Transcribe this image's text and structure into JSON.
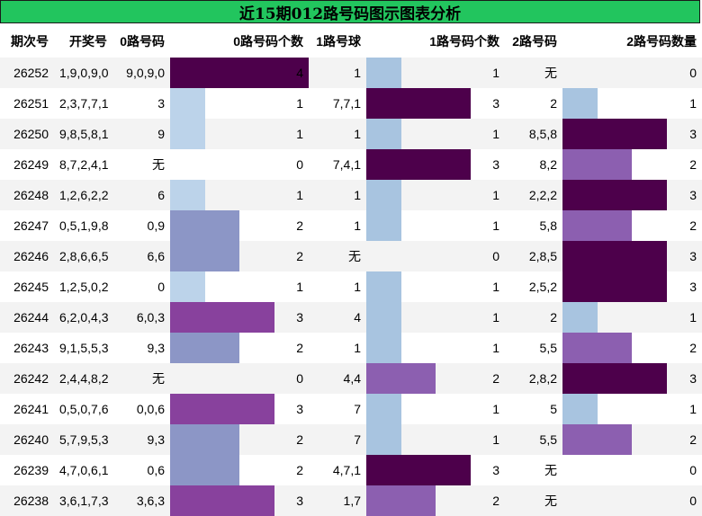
{
  "title": "近15期012路号码图示图表分析",
  "headers": [
    "期次号",
    "开奖号",
    "0路号码",
    "0路号码个数",
    "1路号球",
    "1路号码个数",
    "2路号码",
    "2路号码数量"
  ],
  "max_count": 4,
  "colors": {
    "1": "#bcd3ea",
    "2": "#8c96c6",
    "3": "#88419d",
    "4": "#4d004b"
  },
  "colors_c1": {
    "1": "#a8c4e0",
    "2": "#8c5fb0",
    "3": "#4d004b"
  },
  "colors_c2": {
    "1": "#a8c4e0",
    "2": "#8c5fb0",
    "3": "#4d004b"
  },
  "rows": [
    {
      "period": "26252",
      "draw": "1,9,0,9,0",
      "r0": "9,0,9,0",
      "c0": 4,
      "r1": "1",
      "c1": 1,
      "r2": "无",
      "c2": 0
    },
    {
      "period": "26251",
      "draw": "2,3,7,7,1",
      "r0": "3",
      "c0": 1,
      "r1": "7,7,1",
      "c1": 3,
      "r2": "2",
      "c2": 1
    },
    {
      "period": "26250",
      "draw": "9,8,5,8,1",
      "r0": "9",
      "c0": 1,
      "r1": "1",
      "c1": 1,
      "r2": "8,5,8",
      "c2": 3
    },
    {
      "period": "26249",
      "draw": "8,7,2,4,1",
      "r0": "无",
      "c0": 0,
      "r1": "7,4,1",
      "c1": 3,
      "r2": "8,2",
      "c2": 2
    },
    {
      "period": "26248",
      "draw": "1,2,6,2,2",
      "r0": "6",
      "c0": 1,
      "r1": "1",
      "c1": 1,
      "r2": "2,2,2",
      "c2": 3
    },
    {
      "period": "26247",
      "draw": "0,5,1,9,8",
      "r0": "0,9",
      "c0": 2,
      "r1": "1",
      "c1": 1,
      "r2": "5,8",
      "c2": 2
    },
    {
      "period": "26246",
      "draw": "2,8,6,6,5",
      "r0": "6,6",
      "c0": 2,
      "r1": "无",
      "c1": 0,
      "r2": "2,8,5",
      "c2": 3
    },
    {
      "period": "26245",
      "draw": "1,2,5,0,2",
      "r0": "0",
      "c0": 1,
      "r1": "1",
      "c1": 1,
      "r2": "2,5,2",
      "c2": 3
    },
    {
      "period": "26244",
      "draw": "6,2,0,4,3",
      "r0": "6,0,3",
      "c0": 3,
      "r1": "4",
      "c1": 1,
      "r2": "2",
      "c2": 1
    },
    {
      "period": "26243",
      "draw": "9,1,5,5,3",
      "r0": "9,3",
      "c0": 2,
      "r1": "1",
      "c1": 1,
      "r2": "5,5",
      "c2": 2
    },
    {
      "period": "26242",
      "draw": "2,4,4,8,2",
      "r0": "无",
      "c0": 0,
      "r1": "4,4",
      "c1": 2,
      "r2": "2,8,2",
      "c2": 3
    },
    {
      "period": "26241",
      "draw": "0,5,0,7,6",
      "r0": "0,0,6",
      "c0": 3,
      "r1": "7",
      "c1": 1,
      "r2": "5",
      "c2": 1
    },
    {
      "period": "26240",
      "draw": "5,7,9,5,3",
      "r0": "9,3",
      "c0": 2,
      "r1": "7",
      "c1": 1,
      "r2": "5,5",
      "c2": 2
    },
    {
      "period": "26239",
      "draw": "4,7,0,6,1",
      "r0": "0,6",
      "c0": 2,
      "r1": "4,7,1",
      "c1": 3,
      "r2": "无",
      "c2": 0
    },
    {
      "period": "26238",
      "draw": "3,6,1,7,3",
      "r0": "3,6,3",
      "c0": 3,
      "r1": "1,7",
      "c1": 2,
      "r2": "无",
      "c2": 0
    }
  ]
}
